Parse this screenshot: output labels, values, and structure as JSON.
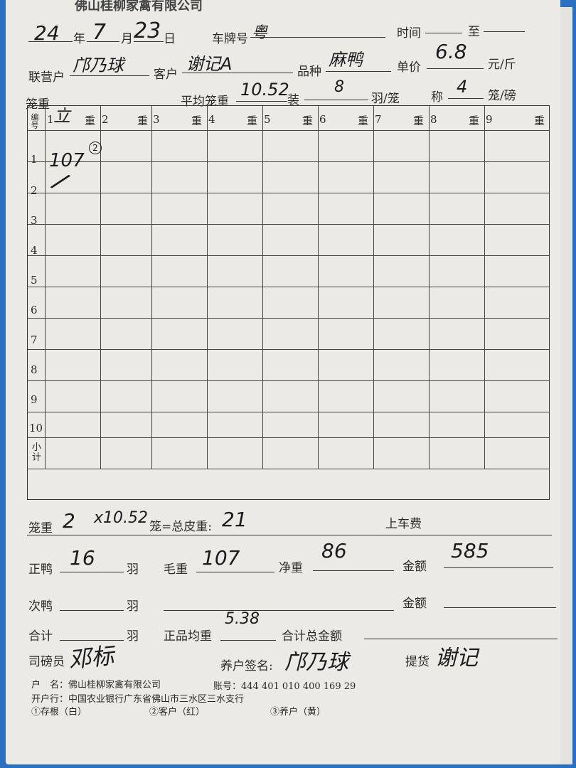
{
  "company_header": "佛山桂柳家禽有限公司",
  "date": {
    "year": "24",
    "year_label": "年",
    "month": "7",
    "month_label": "月",
    "day": "23",
    "day_label": "日"
  },
  "plate": {
    "label": "车牌号",
    "value": "粤"
  },
  "time": {
    "label": "时间",
    "to_label": "至"
  },
  "partner": {
    "label": "联营户",
    "value": "邝乃球"
  },
  "customer": {
    "label": "客户",
    "value": "谢记A"
  },
  "variety": {
    "label": "品种",
    "value": "麻鸭"
  },
  "unit_price": {
    "label": "单价",
    "value": "6.8",
    "unit": "元/斤"
  },
  "cage_weight": {
    "label": "笼重"
  },
  "avg_cage_weight": {
    "label": "平均笼重",
    "value": "10.52"
  },
  "pack": {
    "label": "装",
    "value": "8",
    "unit": "羽/笼"
  },
  "weigh": {
    "label": "称",
    "value": "4",
    "unit": "笼/磅"
  },
  "table": {
    "id_header": "编号",
    "columns": [
      "1",
      "2",
      "3",
      "4",
      "5",
      "6",
      "7",
      "8",
      "9"
    ],
    "weight_label": "重",
    "col1_hand": "立",
    "rows": [
      "1",
      "2",
      "3",
      "4",
      "5",
      "6",
      "7",
      "8",
      "9",
      "10"
    ],
    "subtotal_label": "小计",
    "cells": {
      "r1c1": "107",
      "r1c1_circle": "2",
      "r2c1": "/"
    }
  },
  "summary": {
    "cage_label": "笼重",
    "cage_count": "2",
    "times": "x10.52",
    "cage_eq": "笼=总皮重:",
    "tare": "21",
    "loading_fee_label": "上车费",
    "good_duck_label": "正鸭",
    "good_duck_value": "16",
    "feather": "羽",
    "gross_label": "毛重",
    "gross_value": "107",
    "net_label": "净重",
    "net_value": "86",
    "amount_label": "金额",
    "amount_value": "585",
    "second_duck_label": "次鸭",
    "amount2_label": "金额",
    "total_label": "合计",
    "avg_label": "正品均重",
    "avg_value": "5.38",
    "total_amount_label": "合计总金额"
  },
  "signatures": {
    "weigher_label": "司磅员",
    "weigher": "邓标",
    "farmer_label": "养户签名:",
    "farmer": "邝乃球",
    "pickup_label": "提货",
    "pickup": "谢记"
  },
  "footer": {
    "account_name": "户　名：佛山桂柳家禽有限公司",
    "account_no": "账号：444 401 010 400 169 29",
    "bank": "开户行：中国农业银行广东省佛山市三水区三水支行",
    "copies": [
      "①存根（白）",
      "②客户（红）",
      "③养户（黄）"
    ]
  }
}
